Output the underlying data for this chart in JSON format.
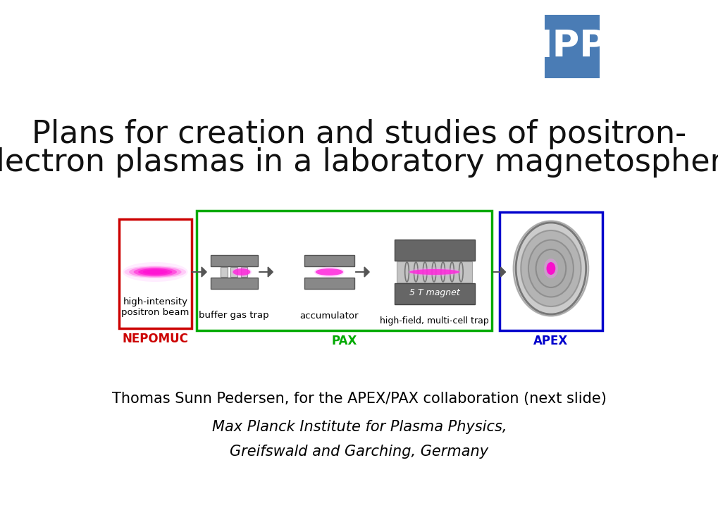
{
  "title_line1": "Plans for creation and studies of positron-",
  "title_line2": "electron plasmas in a laboratory magnetosphere",
  "title_fontsize": 32,
  "title_color": "#111111",
  "bg_color": "#ffffff",
  "ipp_color": "#4a7cb5",
  "ipp_text": "IPP",
  "nepomuc_label": "NEPOMUC",
  "nepomuc_color": "#cc0000",
  "pax_label": "PAX",
  "pax_color": "#00aa00",
  "apex_label": "APEX",
  "apex_color": "#0000cc",
  "label1": "high-intensity\npositron beam",
  "label2": "buffer gas trap",
  "label3": "accumulator",
  "label4_italic": "5 T magnet",
  "label4": "high-field, multi-cell trap",
  "author_line1": "Thomas Sunn Pedersen, for the APEX/PAX collaboration (next slide)",
  "author_line2": "Max Planck Institute for Plasma Physics,",
  "author_line3": "Greifswald and Garching, Germany",
  "author_fontsize": 15,
  "author_italic_fontsize": 15
}
